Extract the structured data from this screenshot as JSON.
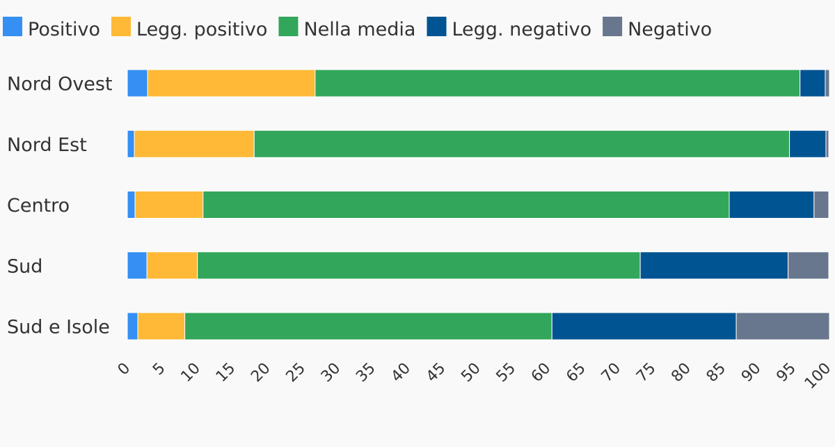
{
  "chart_data": {
    "type": "bar",
    "orientation": "horizontal",
    "stacked": true,
    "title": "",
    "xlabel": "",
    "ylabel": "",
    "xlim": [
      0,
      100
    ],
    "x_ticks": [
      "0",
      "5",
      "10",
      "15",
      "20",
      "25",
      "30",
      "35",
      "40",
      "45",
      "50",
      "55",
      "60",
      "65",
      "70",
      "75",
      "80",
      "85",
      "90",
      "95",
      "100"
    ],
    "grid": false,
    "legend_position": "top-left",
    "categories": [
      "Nord Ovest",
      "Nord Est",
      "Centro",
      "Sud",
      "Sud e Isole"
    ],
    "series": [
      {
        "name": "Positivo",
        "color": "#368ff2",
        "values": [
          2.9,
          1.0,
          1.1,
          2.8,
          1.5
        ]
      },
      {
        "name": "Legg. positivo",
        "color": "#ffb937",
        "values": [
          23.9,
          17.1,
          9.7,
          7.2,
          6.7
        ]
      },
      {
        "name": "Nella media",
        "color": "#32a65a",
        "values": [
          69.2,
          76.4,
          75.1,
          63.2,
          52.4
        ]
      },
      {
        "name": "Legg. negativo",
        "color": "#005492",
        "values": [
          3.6,
          5.2,
          12.1,
          21.1,
          26.3
        ]
      },
      {
        "name": "Negativo",
        "color": "#68778d",
        "values": [
          0.6,
          0.4,
          2.1,
          5.8,
          13.3
        ]
      }
    ]
  }
}
